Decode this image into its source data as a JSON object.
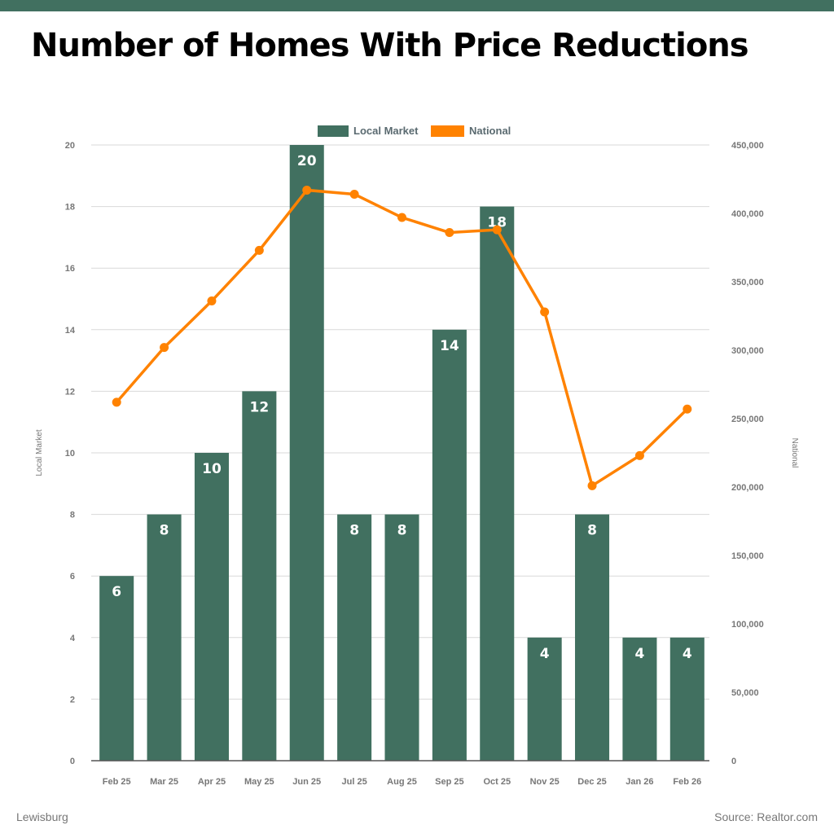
{
  "header": {
    "title": "Number of Homes With Price Reductions"
  },
  "footer": {
    "location": "Lewisburg",
    "source": "Source: Realtor.com"
  },
  "colors": {
    "brand": "#417060",
    "local_market": "#417060",
    "national": "#FF8200",
    "gridline": "#d9d9d9",
    "tick_text": "#777777"
  },
  "chart_data": {
    "type": "bar",
    "title": "Number of Homes With Price Reductions",
    "categories": [
      "Feb 25",
      "Mar 25",
      "Apr 25",
      "May 25",
      "Jun 25",
      "Jul 25",
      "Aug 25",
      "Sep 25",
      "Oct 25",
      "Nov 25",
      "Dec 25",
      "Jan 26",
      "Feb 26"
    ],
    "series": [
      {
        "name": "Local Market",
        "type": "bar",
        "axis": "left",
        "values": [
          6,
          8,
          10,
          12,
          20,
          8,
          8,
          14,
          18,
          4,
          8,
          4,
          4
        ],
        "data_labels": [
          "6",
          "8",
          "10",
          "12",
          "20",
          "8",
          "8",
          "14",
          "18",
          "4",
          "8",
          "4",
          "4"
        ]
      },
      {
        "name": "National",
        "type": "line",
        "axis": "right",
        "values": [
          262000,
          302000,
          336000,
          373000,
          417000,
          414000,
          397000,
          386000,
          388000,
          328000,
          201000,
          223000,
          257000
        ]
      }
    ],
    "left_axis": {
      "label": "Local Market",
      "ylim": [
        0,
        20
      ],
      "ticks": [
        0,
        2,
        4,
        6,
        8,
        10,
        12,
        14,
        16,
        18,
        20
      ],
      "tick_labels": [
        "0",
        "2",
        "4",
        "6",
        "8",
        "10",
        "12",
        "14",
        "16",
        "18",
        "20"
      ]
    },
    "right_axis": {
      "label": "National",
      "ylim": [
        0,
        450000
      ],
      "ticks": [
        0,
        50000,
        100000,
        150000,
        200000,
        250000,
        300000,
        350000,
        400000,
        450000
      ],
      "tick_labels": [
        "0",
        "50,000",
        "100,000",
        "150,000",
        "200,000",
        "250,000",
        "300,000",
        "350,000",
        "400,000",
        "450,000"
      ]
    },
    "legend": {
      "position": "top-center",
      "entries": [
        "Local Market",
        "National"
      ]
    },
    "grid": true
  }
}
